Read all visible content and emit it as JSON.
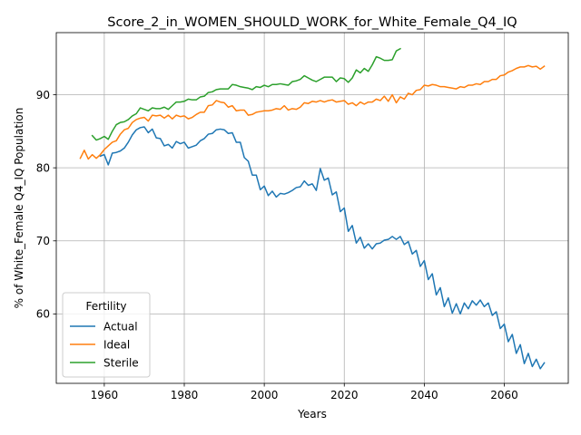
{
  "chart_data": {
    "type": "line",
    "title": "Score_2_in_WOMEN_SHOULD_WORK_for_White_Female_Q4_IQ",
    "xlabel": "Years",
    "ylabel": "% of White_Female Q4_IQ Population",
    "xlim": [
      1948,
      2076
    ],
    "ylim": [
      50.5,
      98.5
    ],
    "xticks": [
      1960,
      1980,
      2000,
      2020,
      2040,
      2060
    ],
    "yticks": [
      60,
      70,
      80,
      90
    ],
    "grid": true,
    "legend": {
      "title": "Fertility",
      "placement": "lower-left"
    },
    "series": [
      {
        "name": "Actual",
        "color": "#1f77b4",
        "points": [
          [
            1959,
            81.6
          ],
          [
            1960,
            81.8
          ],
          [
            1961,
            80.4
          ],
          [
            1962,
            82.0
          ],
          [
            1963,
            82.1
          ],
          [
            1964,
            82.3
          ],
          [
            1965,
            82.7
          ],
          [
            1966,
            83.5
          ],
          [
            1967,
            84.5
          ],
          [
            1968,
            85.2
          ],
          [
            1969,
            85.5
          ],
          [
            1970,
            85.6
          ],
          [
            1971,
            84.8
          ],
          [
            1972,
            85.3
          ],
          [
            1973,
            84.1
          ],
          [
            1974,
            84.0
          ],
          [
            1975,
            83.0
          ],
          [
            1976,
            83.2
          ],
          [
            1977,
            82.7
          ],
          [
            1978,
            83.6
          ],
          [
            1979,
            83.3
          ],
          [
            1980,
            83.5
          ],
          [
            1981,
            82.7
          ],
          [
            1982,
            82.9
          ],
          [
            1983,
            83.1
          ],
          [
            1984,
            83.7
          ],
          [
            1985,
            84.0
          ],
          [
            1986,
            84.6
          ],
          [
            1987,
            84.7
          ],
          [
            1988,
            85.2
          ],
          [
            1989,
            85.3
          ],
          [
            1990,
            85.2
          ],
          [
            1991,
            84.7
          ],
          [
            1992,
            84.8
          ],
          [
            1993,
            83.5
          ],
          [
            1994,
            83.5
          ],
          [
            1995,
            81.4
          ],
          [
            1996,
            80.9
          ],
          [
            1997,
            79.0
          ],
          [
            1998,
            79.0
          ],
          [
            1999,
            77.0
          ],
          [
            2000,
            77.5
          ],
          [
            2001,
            76.2
          ],
          [
            2002,
            76.8
          ],
          [
            2003,
            76.0
          ],
          [
            2004,
            76.5
          ],
          [
            2005,
            76.4
          ],
          [
            2006,
            76.6
          ],
          [
            2007,
            76.9
          ],
          [
            2008,
            77.3
          ],
          [
            2009,
            77.4
          ],
          [
            2010,
            78.2
          ],
          [
            2011,
            77.6
          ],
          [
            2012,
            77.8
          ],
          [
            2013,
            76.9
          ],
          [
            2014,
            79.9
          ],
          [
            2015,
            78.3
          ],
          [
            2016,
            78.6
          ],
          [
            2017,
            76.3
          ],
          [
            2018,
            76.7
          ],
          [
            2019,
            74.0
          ],
          [
            2020,
            74.5
          ],
          [
            2021,
            71.3
          ],
          [
            2022,
            72.1
          ],
          [
            2023,
            69.7
          ],
          [
            2024,
            70.5
          ],
          [
            2025,
            69.0
          ],
          [
            2026,
            69.6
          ],
          [
            2027,
            68.9
          ],
          [
            2028,
            69.6
          ],
          [
            2029,
            69.7
          ],
          [
            2030,
            70.1
          ],
          [
            2031,
            70.2
          ],
          [
            2032,
            70.6
          ],
          [
            2033,
            70.2
          ],
          [
            2034,
            70.6
          ],
          [
            2035,
            69.5
          ],
          [
            2036,
            69.9
          ],
          [
            2037,
            68.2
          ],
          [
            2038,
            68.7
          ],
          [
            2039,
            66.5
          ],
          [
            2040,
            67.3
          ],
          [
            2041,
            64.7
          ],
          [
            2042,
            65.5
          ],
          [
            2043,
            62.6
          ],
          [
            2044,
            63.6
          ],
          [
            2045,
            61.0
          ],
          [
            2046,
            62.2
          ],
          [
            2047,
            60.1
          ],
          [
            2048,
            61.4
          ],
          [
            2049,
            60.0
          ],
          [
            2050,
            61.5
          ],
          [
            2051,
            60.7
          ],
          [
            2052,
            61.8
          ],
          [
            2053,
            61.2
          ],
          [
            2054,
            61.9
          ],
          [
            2055,
            61.0
          ],
          [
            2056,
            61.5
          ],
          [
            2057,
            59.8
          ],
          [
            2058,
            60.3
          ],
          [
            2059,
            58.0
          ],
          [
            2060,
            58.6
          ],
          [
            2061,
            56.2
          ],
          [
            2062,
            57.2
          ],
          [
            2063,
            54.6
          ],
          [
            2064,
            55.8
          ],
          [
            2065,
            53.2
          ],
          [
            2066,
            54.6
          ],
          [
            2067,
            52.8
          ],
          [
            2068,
            53.8
          ],
          [
            2069,
            52.5
          ],
          [
            2070,
            53.3
          ]
        ]
      },
      {
        "name": "Ideal",
        "color": "#ff7f0e",
        "points": [
          [
            1954,
            81.3
          ],
          [
            1955,
            82.4
          ],
          [
            1956,
            81.2
          ],
          [
            1957,
            81.8
          ],
          [
            1958,
            81.3
          ],
          [
            1959,
            81.8
          ],
          [
            1960,
            82.5
          ],
          [
            1961,
            83.0
          ],
          [
            1962,
            83.5
          ],
          [
            1963,
            83.7
          ],
          [
            1964,
            84.6
          ],
          [
            1965,
            85.2
          ],
          [
            1966,
            85.4
          ],
          [
            1967,
            86.2
          ],
          [
            1968,
            86.6
          ],
          [
            1969,
            86.8
          ],
          [
            1970,
            86.9
          ],
          [
            1971,
            86.4
          ],
          [
            1972,
            87.2
          ],
          [
            1973,
            87.1
          ],
          [
            1974,
            87.2
          ],
          [
            1975,
            86.8
          ],
          [
            1976,
            87.2
          ],
          [
            1977,
            86.7
          ],
          [
            1978,
            87.2
          ],
          [
            1979,
            87.0
          ],
          [
            1980,
            87.1
          ],
          [
            1981,
            86.7
          ],
          [
            1982,
            86.9
          ],
          [
            1983,
            87.3
          ],
          [
            1984,
            87.6
          ],
          [
            1985,
            87.6
          ],
          [
            1986,
            88.5
          ],
          [
            1987,
            88.6
          ],
          [
            1988,
            89.2
          ],
          [
            1989,
            89.0
          ],
          [
            1990,
            88.9
          ],
          [
            1991,
            88.3
          ],
          [
            1992,
            88.5
          ],
          [
            1993,
            87.8
          ],
          [
            1994,
            87.9
          ],
          [
            1995,
            87.9
          ],
          [
            1996,
            87.2
          ],
          [
            1997,
            87.3
          ],
          [
            1998,
            87.6
          ],
          [
            1999,
            87.7
          ],
          [
            2000,
            87.8
          ],
          [
            2001,
            87.8
          ],
          [
            2002,
            87.9
          ],
          [
            2003,
            88.1
          ],
          [
            2004,
            88.0
          ],
          [
            2005,
            88.5
          ],
          [
            2006,
            87.9
          ],
          [
            2007,
            88.1
          ],
          [
            2008,
            88.0
          ],
          [
            2009,
            88.3
          ],
          [
            2010,
            88.9
          ],
          [
            2011,
            88.8
          ],
          [
            2012,
            89.1
          ],
          [
            2013,
            89.0
          ],
          [
            2014,
            89.2
          ],
          [
            2015,
            89.0
          ],
          [
            2016,
            89.2
          ],
          [
            2017,
            89.3
          ],
          [
            2018,
            89.0
          ],
          [
            2019,
            89.1
          ],
          [
            2020,
            89.2
          ],
          [
            2021,
            88.7
          ],
          [
            2022,
            88.9
          ],
          [
            2023,
            88.5
          ],
          [
            2024,
            89.0
          ],
          [
            2025,
            88.7
          ],
          [
            2026,
            89.0
          ],
          [
            2027,
            89.0
          ],
          [
            2028,
            89.4
          ],
          [
            2029,
            89.2
          ],
          [
            2030,
            89.8
          ],
          [
            2031,
            89.1
          ],
          [
            2032,
            90.0
          ],
          [
            2033,
            88.9
          ],
          [
            2034,
            89.7
          ],
          [
            2035,
            89.4
          ],
          [
            2036,
            90.2
          ],
          [
            2037,
            90.0
          ],
          [
            2038,
            90.6
          ],
          [
            2039,
            90.7
          ],
          [
            2040,
            91.3
          ],
          [
            2041,
            91.2
          ],
          [
            2042,
            91.4
          ],
          [
            2043,
            91.3
          ],
          [
            2044,
            91.1
          ],
          [
            2045,
            91.1
          ],
          [
            2046,
            91.0
          ],
          [
            2047,
            90.9
          ],
          [
            2048,
            90.8
          ],
          [
            2049,
            91.1
          ],
          [
            2050,
            91.0
          ],
          [
            2051,
            91.3
          ],
          [
            2052,
            91.3
          ],
          [
            2053,
            91.5
          ],
          [
            2054,
            91.4
          ],
          [
            2055,
            91.8
          ],
          [
            2056,
            91.8
          ],
          [
            2057,
            92.1
          ],
          [
            2058,
            92.1
          ],
          [
            2059,
            92.6
          ],
          [
            2060,
            92.7
          ],
          [
            2061,
            93.1
          ],
          [
            2062,
            93.3
          ],
          [
            2063,
            93.6
          ],
          [
            2064,
            93.8
          ],
          [
            2065,
            93.8
          ],
          [
            2066,
            94.0
          ],
          [
            2067,
            93.8
          ],
          [
            2068,
            93.9
          ],
          [
            2069,
            93.5
          ],
          [
            2070,
            93.9
          ]
        ]
      },
      {
        "name": "Sterile",
        "color": "#2ca02c",
        "points": [
          [
            1957,
            84.4
          ],
          [
            1958,
            83.8
          ],
          [
            1959,
            84.0
          ],
          [
            1960,
            84.3
          ],
          [
            1961,
            83.9
          ],
          [
            1962,
            85.0
          ],
          [
            1963,
            85.9
          ],
          [
            1964,
            86.2
          ],
          [
            1965,
            86.3
          ],
          [
            1966,
            86.6
          ],
          [
            1967,
            87.1
          ],
          [
            1968,
            87.4
          ],
          [
            1969,
            88.2
          ],
          [
            1970,
            88.0
          ],
          [
            1971,
            87.8
          ],
          [
            1972,
            88.2
          ],
          [
            1973,
            88.1
          ],
          [
            1974,
            88.1
          ],
          [
            1975,
            88.3
          ],
          [
            1976,
            88.0
          ],
          [
            1977,
            88.5
          ],
          [
            1978,
            89.0
          ],
          [
            1979,
            89.0
          ],
          [
            1980,
            89.1
          ],
          [
            1981,
            89.4
          ],
          [
            1982,
            89.3
          ],
          [
            1983,
            89.3
          ],
          [
            1984,
            89.7
          ],
          [
            1985,
            89.8
          ],
          [
            1986,
            90.3
          ],
          [
            1987,
            90.4
          ],
          [
            1988,
            90.7
          ],
          [
            1989,
            90.8
          ],
          [
            1990,
            90.8
          ],
          [
            1991,
            90.8
          ],
          [
            1992,
            91.4
          ],
          [
            1993,
            91.3
          ],
          [
            1994,
            91.1
          ],
          [
            1995,
            91.0
          ],
          [
            1996,
            90.9
          ],
          [
            1997,
            90.7
          ],
          [
            1998,
            91.1
          ],
          [
            1999,
            91.0
          ],
          [
            2000,
            91.3
          ],
          [
            2001,
            91.1
          ],
          [
            2002,
            91.4
          ],
          [
            2003,
            91.4
          ],
          [
            2004,
            91.5
          ],
          [
            2005,
            91.4
          ],
          [
            2006,
            91.3
          ],
          [
            2007,
            91.8
          ],
          [
            2008,
            91.9
          ],
          [
            2009,
            92.1
          ],
          [
            2010,
            92.6
          ],
          [
            2011,
            92.3
          ],
          [
            2012,
            92.0
          ],
          [
            2013,
            91.8
          ],
          [
            2014,
            92.1
          ],
          [
            2015,
            92.4
          ],
          [
            2016,
            92.4
          ],
          [
            2017,
            92.4
          ],
          [
            2018,
            91.8
          ],
          [
            2019,
            92.3
          ],
          [
            2020,
            92.2
          ],
          [
            2021,
            91.7
          ],
          [
            2022,
            92.3
          ],
          [
            2023,
            93.4
          ],
          [
            2024,
            93.0
          ],
          [
            2025,
            93.6
          ],
          [
            2026,
            93.2
          ],
          [
            2027,
            94.1
          ],
          [
            2028,
            95.2
          ],
          [
            2029,
            95.0
          ],
          [
            2030,
            94.7
          ],
          [
            2031,
            94.7
          ],
          [
            2032,
            94.8
          ],
          [
            2033,
            96.0
          ],
          [
            2034,
            96.3
          ]
        ]
      }
    ]
  }
}
